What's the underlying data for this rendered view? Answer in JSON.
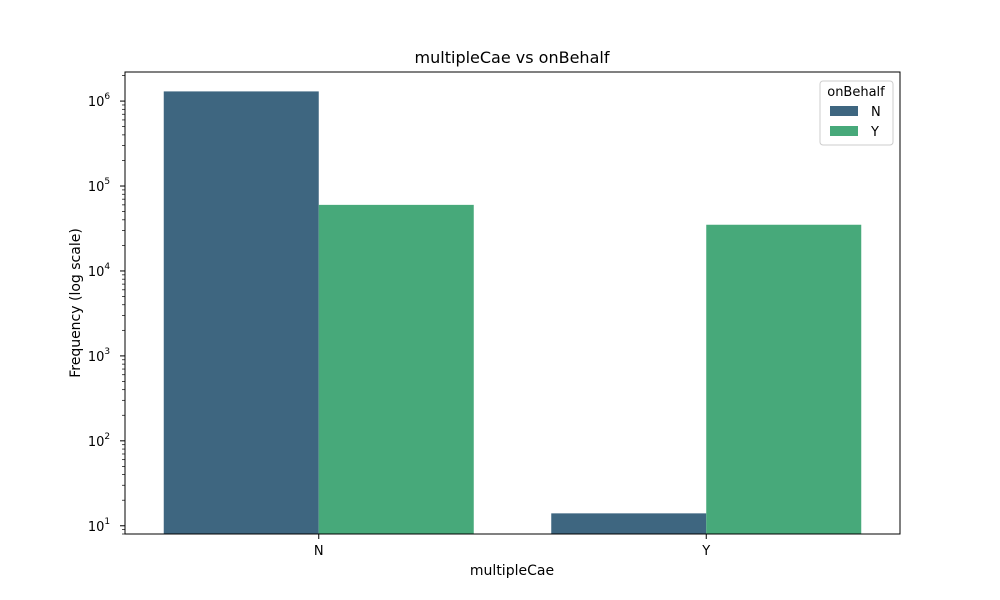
{
  "chart_data": {
    "type": "bar",
    "title": "multipleCae vs onBehalf",
    "xlabel": "multipleCae",
    "ylabel": "Frequency (log scale)",
    "yscale": "log",
    "ylim": [
      8,
      2200000
    ],
    "yticks": [
      {
        "value": 10,
        "base": "10",
        "exp": "1"
      },
      {
        "value": 100,
        "base": "10",
        "exp": "2"
      },
      {
        "value": 1000,
        "base": "10",
        "exp": "3"
      },
      {
        "value": 10000,
        "base": "10",
        "exp": "4"
      },
      {
        "value": 100000,
        "base": "10",
        "exp": "5"
      },
      {
        "value": 1000000,
        "base": "10",
        "exp": "6"
      }
    ],
    "categories": [
      "N",
      "Y"
    ],
    "series": [
      {
        "name": "N",
        "color": "#3e6680",
        "values": [
          1300000,
          14
        ]
      },
      {
        "name": "Y",
        "color": "#47a97a",
        "values": [
          60000,
          35000
        ]
      }
    ],
    "legend": {
      "title": "onBehalf",
      "position": "top-right"
    },
    "grid": false
  }
}
